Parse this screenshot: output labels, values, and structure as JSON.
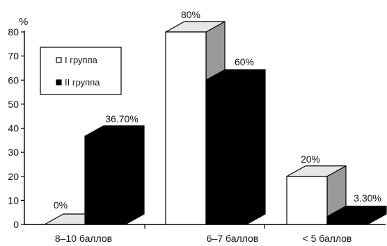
{
  "chart_data": {
    "type": "bar",
    "title": "",
    "xlabel": "",
    "ylabel": "%",
    "ylim": [
      0,
      80
    ],
    "yticks": [
      0,
      10,
      20,
      30,
      40,
      50,
      60,
      70,
      80
    ],
    "categories": [
      "8–10 баллов",
      "6–7 баллов",
      "< 5 баллов"
    ],
    "series": [
      {
        "name": "I группа",
        "values": [
          0,
          80,
          20
        ],
        "labels": [
          "0%",
          "80%",
          "20%"
        ],
        "color": "#ffffff"
      },
      {
        "name": "II группа",
        "values": [
          36.7,
          60,
          3.3
        ],
        "labels": [
          "36.70%",
          "60%",
          "3.30%"
        ],
        "color": "#000000"
      }
    ],
    "grid": false,
    "legend": "top-left",
    "bars_3d": true
  },
  "colors": {
    "outline": "#000000",
    "side_dark": "#999999",
    "top_light": "#e6e6e6",
    "white_fill": "#ffffff",
    "black_fill": "#000000"
  }
}
